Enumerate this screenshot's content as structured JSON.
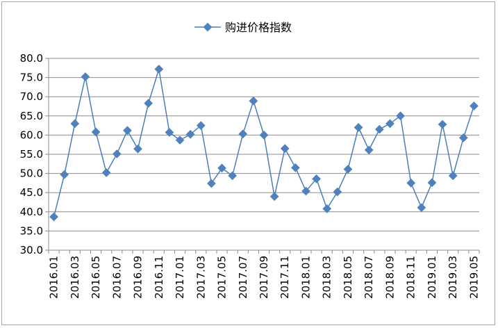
{
  "chart_data": {
    "type": "line",
    "title": "",
    "xlabel": "",
    "ylabel": "",
    "ylim": [
      30,
      80
    ],
    "y_ticks": [
      "30.0",
      "35.0",
      "40.0",
      "45.0",
      "50.0",
      "55.0",
      "60.0",
      "65.0",
      "70.0",
      "75.0",
      "80.0"
    ],
    "grid": "horizontal",
    "legend_position": "top-center",
    "line_color": "#4a7ebb",
    "marker_color": "#4f81bd",
    "categories": [
      "2016.01",
      "2016.02",
      "2016.03",
      "2016.04",
      "2016.05",
      "2016.06",
      "2016.07",
      "2016.08",
      "2016.09",
      "2016.10",
      "2016.11",
      "2016.12",
      "2017.01",
      "2017.02",
      "2017.03",
      "2017.04",
      "2017.05",
      "2017.06",
      "2017.07",
      "2017.08",
      "2017.09",
      "2017.10",
      "2017.11",
      "2017.12",
      "2018.01",
      "2018.02",
      "2018.03",
      "2018.04",
      "2018.05",
      "2018.06",
      "2018.07",
      "2018.08",
      "2018.09",
      "2018.10",
      "2018.11",
      "2018.12",
      "2019.01",
      "2019.02",
      "2019.03",
      "2019.04",
      "2019.05"
    ],
    "x_tick_labels": [
      "2016.01",
      "2016.03",
      "2016.05",
      "2016.07",
      "2016.09",
      "2016.11",
      "2017.01",
      "2017.03",
      "2017.05",
      "2017.07",
      "2017.09",
      "2017.11",
      "2018.01",
      "2018.03",
      "2018.05",
      "2018.07",
      "2018.09",
      "2018.11",
      "2019.01",
      "2019.03",
      "2019.05"
    ],
    "series": [
      {
        "name": "购进价格指数",
        "values": [
          38.7,
          49.7,
          63.0,
          75.2,
          60.8,
          50.2,
          55.1,
          61.2,
          56.4,
          68.3,
          77.2,
          60.7,
          58.7,
          60.2,
          62.5,
          47.4,
          51.4,
          49.4,
          60.3,
          68.9,
          60.0,
          44.0,
          56.5,
          51.5,
          45.4,
          48.6,
          40.8,
          45.2,
          51.1,
          62.0,
          56.1,
          61.5,
          63.0,
          65.0,
          47.5,
          41.1,
          47.6,
          62.8,
          49.4,
          59.3,
          67.6
        ]
      }
    ]
  }
}
